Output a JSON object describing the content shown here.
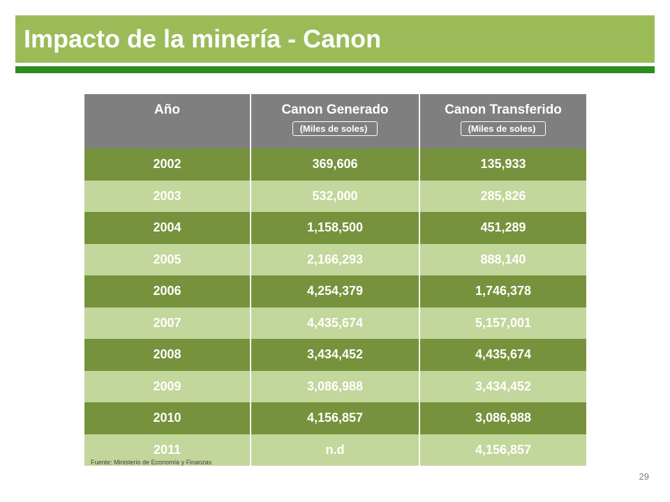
{
  "slide": {
    "title": "Impacto de la minería - Canon",
    "source": "Fuente: Ministerio de Economía y Finanzas",
    "page_number": "29",
    "colors": {
      "title_bar": "#9bbb59",
      "rule": "#2e8b1e",
      "header": "#7f7f7f",
      "row_dark": "#76923c",
      "row_light": "#c3d69b"
    }
  },
  "table": {
    "headers": [
      {
        "label": "Año",
        "unit": ""
      },
      {
        "label": "Canon Generado",
        "unit": "(Miles de soles)"
      },
      {
        "label": "Canon Transferido",
        "unit": "(Miles de soles)"
      }
    ],
    "rows": [
      [
        "2002",
        "369,606",
        "135,933"
      ],
      [
        "2003",
        "532,000",
        "285,826"
      ],
      [
        "2004",
        "1,158,500",
        "451,289"
      ],
      [
        "2005",
        "2,166,293",
        "888,140"
      ],
      [
        "2006",
        "4,254,379",
        "1,746,378"
      ],
      [
        "2007",
        "4,435,674",
        "5,157,001"
      ],
      [
        "2008",
        "3,434,452",
        "4,435,674"
      ],
      [
        "2009",
        "3,086,988",
        "3,434,452"
      ],
      [
        "2010",
        "4,156,857",
        "3,086,988"
      ],
      [
        "2011",
        "n.d",
        "4,156,857"
      ]
    ]
  }
}
